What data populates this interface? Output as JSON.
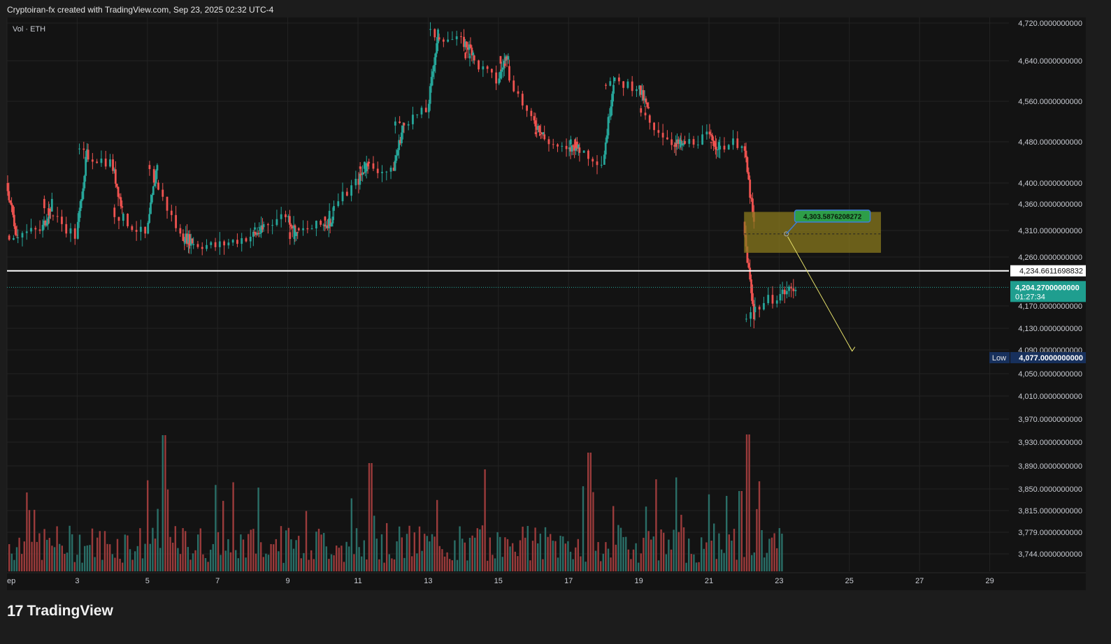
{
  "header": {
    "text": "Cryptoiran-fx created with TradingView.com, Sep 23, 2025 02:32 UTC-4"
  },
  "footer": {
    "logo": "17",
    "brand": "TradingView"
  },
  "colors": {
    "up": "#26a69a",
    "down": "#ef5350",
    "bg": "#131313",
    "grid": "#232323",
    "zone": "#8a7a1e",
    "arrow": "#e5e06a"
  },
  "chart_data": {
    "type": "candlestick",
    "title": "",
    "legend_label": "Vol · ETH",
    "y_tick_labels": [
      "4,720.0000000000",
      "4,640.0000000000",
      "4,560.0000000000",
      "4,480.0000000000",
      "4,400.0000000000",
      "4,360.0000000000",
      "4,310.0000000000",
      "4,260.0000000000",
      "4,170.0000000000",
      "4,130.0000000000",
      "4,090.0000000000",
      "4,050.0000000000",
      "4,010.0000000000",
      "3,970.0000000000",
      "3,930.0000000000",
      "3,890.0000000000",
      "3,850.0000000000",
      "3,815.0000000000",
      "3,779.0000000000",
      "3,744.0000000000"
    ],
    "y_tick_values": [
      4720,
      4640,
      4560,
      4480,
      4400,
      4360,
      4310,
      4260,
      4170,
      4130,
      4090,
      4050,
      4010,
      3970,
      3930,
      3890,
      3850,
      3815,
      3779,
      3744
    ],
    "x_tick_labels": [
      "ep",
      "3",
      "5",
      "7",
      "9",
      "11",
      "13",
      "15",
      "17",
      "19",
      "21",
      "23",
      "25",
      "27",
      "29"
    ],
    "x_tick_days": [
      1,
      3,
      5,
      7,
      9,
      11,
      13,
      15,
      17,
      19,
      21,
      23,
      25,
      27,
      29
    ],
    "price_range": [
      3720,
      4730
    ],
    "volume_peak_date": "Sep 5",
    "candles_4h_approx": [
      [
        "Sep 1",
        4400,
        4440,
        4270,
        4300
      ],
      [
        "Sep 1",
        4300,
        4340,
        4200,
        4310
      ],
      [
        "Sep 2",
        4310,
        4390,
        4280,
        4360
      ],
      [
        "Sep 2",
        4360,
        4370,
        4250,
        4300
      ],
      [
        "Sep 3",
        4300,
        4480,
        4290,
        4460
      ],
      [
        "Sep 3",
        4460,
        4490,
        4400,
        4440
      ],
      [
        "Sep 4",
        4440,
        4450,
        4330,
        4350
      ],
      [
        "Sep 4",
        4350,
        4370,
        4280,
        4300
      ],
      [
        "Sep 5",
        4300,
        4470,
        4290,
        4440
      ],
      [
        "Sep 5",
        4440,
        4490,
        4280,
        4300
      ],
      [
        "Sep 6",
        4300,
        4310,
        4270,
        4290
      ],
      [
        "Sep 6",
        4290,
        4300,
        4240,
        4280
      ],
      [
        "Sep 7",
        4280,
        4320,
        4270,
        4300
      ],
      [
        "Sep 8",
        4300,
        4320,
        4280,
        4310
      ],
      [
        "Sep 8",
        4310,
        4380,
        4300,
        4340
      ],
      [
        "Sep 9",
        4340,
        4350,
        4280,
        4300
      ],
      [
        "Sep 9",
        4300,
        4340,
        4290,
        4320
      ],
      [
        "Sep 10",
        4320,
        4340,
        4300,
        4330
      ],
      [
        "Sep 10",
        4330,
        4420,
        4320,
        4400
      ],
      [
        "Sep 11",
        4400,
        4450,
        4380,
        4440
      ],
      [
        "Sep 11",
        4440,
        4460,
        4400,
        4420
      ],
      [
        "Sep 12",
        4420,
        4530,
        4410,
        4510
      ],
      [
        "Sep 12",
        4510,
        4560,
        4480,
        4540
      ],
      [
        "Sep 13",
        4540,
        4720,
        4530,
        4700
      ],
      [
        "Sep 13",
        4700,
        4725,
        4660,
        4680
      ],
      [
        "Sep 14",
        4680,
        4690,
        4620,
        4660
      ],
      [
        "Sep 14",
        4660,
        4670,
        4580,
        4600
      ],
      [
        "Sep 15",
        4600,
        4680,
        4590,
        4660
      ],
      [
        "Sep 15",
        4660,
        4670,
        4500,
        4520
      ],
      [
        "Sep 16",
        4520,
        4530,
        4470,
        4500
      ],
      [
        "Sep 16",
        4500,
        4510,
        4440,
        4460
      ],
      [
        "Sep 17",
        4460,
        4500,
        4410,
        4480
      ],
      [
        "Sep 17",
        4480,
        4520,
        4400,
        4440
      ],
      [
        "Sep 18",
        4440,
        4640,
        4430,
        4600
      ],
      [
        "Sep 18",
        4600,
        4630,
        4560,
        4590
      ],
      [
        "Sep 19",
        4590,
        4600,
        4520,
        4540
      ],
      [
        "Sep 19",
        4540,
        4550,
        4460,
        4480
      ],
      [
        "Sep 20",
        4480,
        4490,
        4440,
        4470
      ],
      [
        "Sep 20",
        4470,
        4500,
        4460,
        4490
      ],
      [
        "Sep 21",
        4490,
        4500,
        4450,
        4470
      ],
      [
        "Sep 21",
        4470,
        4500,
        4440,
        4480
      ],
      [
        "Sep 22",
        4480,
        4490,
        4410,
        4320
      ],
      [
        "Sep 22",
        4320,
        4330,
        4077,
        4150
      ],
      [
        "Sep 22",
        4150,
        4220,
        4130,
        4190
      ],
      [
        "Sep 23",
        4190,
        4220,
        4140,
        4204
      ]
    ],
    "price_lines": [
      {
        "label": "4,234.6611698832",
        "value": 4234.66,
        "style": "solid-white"
      },
      {
        "label": "4,204.2700000000",
        "value": 4204.27,
        "style": "dotted-green",
        "countdown": "01:27:34"
      },
      {
        "label": "4,077.0000000000",
        "value": 4077,
        "style": "low",
        "tag": "Low"
      }
    ],
    "zone": {
      "top": 4345,
      "bottom": 4268,
      "start": "Sep 22",
      "end": "Sep 25.9"
    },
    "annotation": {
      "label": "4,303.5876208272",
      "value": 4303.59,
      "at": "Sep 24"
    },
    "arrow_target": {
      "value": 4088,
      "at": "Sep 25"
    }
  }
}
